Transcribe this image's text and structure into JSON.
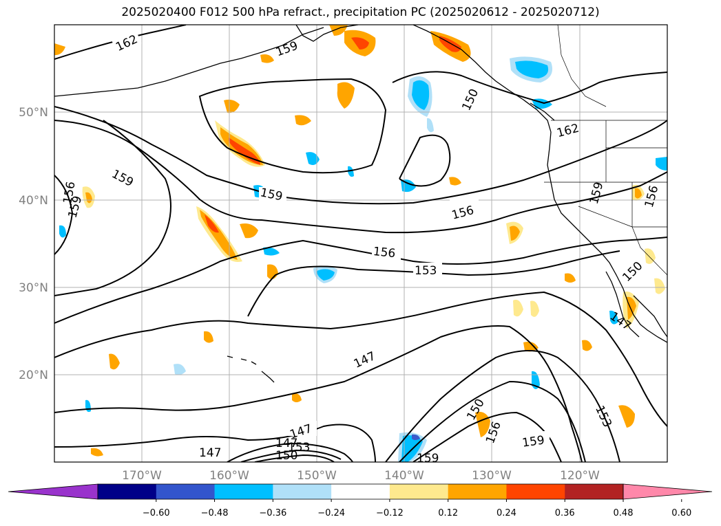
{
  "title": "2025020400 F012 500 hPa refract., precipitation PC (2025020612 - 2025020712)",
  "map": {
    "projection": "PlateCarree",
    "lon_range": [
      -180,
      -110
    ],
    "lat_range": [
      10,
      60
    ],
    "lon_ticks": [
      "170°W",
      "160°W",
      "150°W",
      "140°W",
      "130°W",
      "120°W"
    ],
    "lat_ticks": [
      "50°N",
      "40°N",
      "30°N",
      "20°N"
    ],
    "grid": true,
    "contour_field": "500 hPa refractivity",
    "contour_labels": [
      "162",
      "159",
      "159",
      "159",
      "159",
      "156",
      "156",
      "156",
      "153",
      "150",
      "147",
      "147",
      "147",
      "150",
      "153",
      "156",
      "159",
      "162",
      "159",
      "156",
      "150",
      "147",
      "147",
      "150",
      "153",
      "159"
    ],
    "filled_field": "precipitation PC",
    "colors": {
      "coast": "#000000",
      "grid": "#b0b0b0",
      "tick_label": "#808080",
      "positive_weak": "#fee98e",
      "positive_mid": "#ffa500",
      "positive_strong": "#ff4500",
      "negative_weak": "#b0e0f8",
      "negative_mid": "#00bfff",
      "negative_strong": "#3a5bcb"
    }
  },
  "colorbar": {
    "extend": "both",
    "ticks": [
      "−0.60",
      "−0.48",
      "−0.36",
      "−0.24",
      "−0.12",
      "0.12",
      "0.24",
      "0.36",
      "0.48",
      "0.60"
    ],
    "colors": [
      "#9933cc",
      "#000088",
      "#3355cc",
      "#00bfff",
      "#b0e0f8",
      "#ffffff",
      "#fee98e",
      "#ffa500",
      "#ff4500",
      "#b22222",
      "#ff88aa"
    ]
  }
}
